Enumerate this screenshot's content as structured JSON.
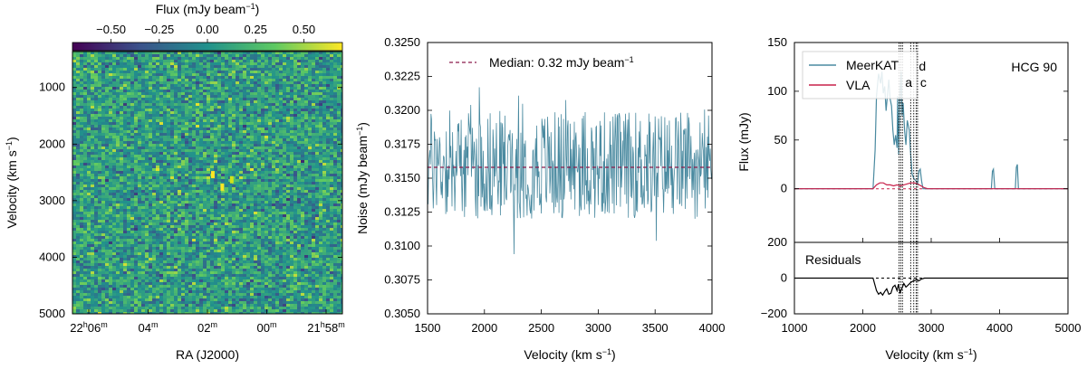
{
  "chart_data": [
    {
      "type": "heatmap",
      "xlabel": "RA (J2000)",
      "ylabel": "Velocity (km s",
      "ylabel_sup": "−1",
      "ylabel_end": ")",
      "x_ticks": [
        {
          "base": "22",
          "sup1": "h",
          "mid": "06",
          "sup2": "m"
        },
        {
          "base": "04",
          "sup1": "m",
          "mid": "",
          "sup2": ""
        },
        {
          "base": "02",
          "sup1": "m",
          "mid": "",
          "sup2": ""
        },
        {
          "base": "00",
          "sup1": "m",
          "mid": "",
          "sup2": ""
        },
        {
          "base": "21",
          "sup1": "h",
          "mid": "58",
          "sup2": "m"
        }
      ],
      "y_ticks": [
        "1000",
        "2000",
        "3000",
        "4000",
        "5000"
      ],
      "ylim": [
        365,
        5000
      ],
      "colorbar": {
        "label": "Flux (mJy beam",
        "label_sup": "−1",
        "label_end": ")",
        "range": [
          -0.7,
          0.7
        ],
        "ticks": [
          "−0.50",
          "−0.25",
          "0.00",
          "0.25",
          "0.50"
        ],
        "tick_values": [
          -0.5,
          -0.25,
          0.0,
          0.25,
          0.5
        ],
        "colormap": [
          "#440154",
          "#3b528b",
          "#21918c",
          "#5ec962",
          "#fde725"
        ]
      },
      "sources": [
        {
          "ra_frac": 0.52,
          "velocity": 2540,
          "color": "#fde725"
        },
        {
          "ra_frac": 0.555,
          "velocity": 2760,
          "color": "#fde725"
        },
        {
          "ra_frac": 0.59,
          "velocity": 2630,
          "color": "#d2e21b"
        }
      ]
    },
    {
      "type": "line",
      "xlabel": "Velocity (km s",
      "xlabel_sup": "−1",
      "xlabel_end": ")",
      "ylabel": "Noise (mJy beam",
      "ylabel_sup": "−1",
      "ylabel_end": ")",
      "xlim": [
        1500,
        4000
      ],
      "ylim": [
        0.305,
        0.325
      ],
      "x_ticks": [
        1500,
        2000,
        2500,
        3000,
        3500,
        4000
      ],
      "y_ticks": [
        "0.3050",
        "0.3075",
        "0.3100",
        "0.3125",
        "0.3150",
        "0.3175",
        "0.3200",
        "0.3225",
        "0.3250"
      ],
      "series_color": "#4a8aa0",
      "median": {
        "value": 0.3158,
        "label": "Median: 0.32 mJy beam",
        "label_sup": "−1",
        "color": "#8b1a4a"
      }
    },
    {
      "type": "line",
      "title": "HCG 90",
      "xlabel": "Velocity (km s",
      "xlabel_sup": "−1",
      "xlabel_end": ")",
      "ylabel": "Flux (mJy)",
      "xlim": [
        1000,
        5000
      ],
      "ylim": [
        -55,
        150
      ],
      "x_ticks": [
        1000,
        2000,
        3000,
        4000,
        5000
      ],
      "y_ticks": [
        0,
        50,
        100,
        150
      ],
      "series": [
        {
          "name": "MeerKAT",
          "color": "#4a8aa0",
          "points": [
            [
              1000,
              0
            ],
            [
              2150,
              0
            ],
            [
              2180,
              40
            ],
            [
              2200,
              95
            ],
            [
              2230,
              118
            ],
            [
              2260,
              108
            ],
            [
              2280,
              120
            ],
            [
              2300,
              98
            ],
            [
              2320,
              105
            ],
            [
              2340,
              80
            ],
            [
              2360,
              96
            ],
            [
              2380,
              112
            ],
            [
              2400,
              92
            ],
            [
              2420,
              85
            ],
            [
              2440,
              60
            ],
            [
              2460,
              45
            ],
            [
              2480,
              55
            ],
            [
              2500,
              42
            ],
            [
              2510,
              95
            ],
            [
              2525,
              35
            ],
            [
              2540,
              90
            ],
            [
              2560,
              120
            ],
            [
              2575,
              75
            ],
            [
              2590,
              88
            ],
            [
              2610,
              60
            ],
            [
              2630,
              45
            ],
            [
              2650,
              70
            ],
            [
              2680,
              60
            ],
            [
              2700,
              35
            ],
            [
              2720,
              15
            ],
            [
              2750,
              10
            ],
            [
              2780,
              8
            ],
            [
              2800,
              5
            ],
            [
              2820,
              18
            ],
            [
              2840,
              20
            ],
            [
              2860,
              8
            ],
            [
              2880,
              0
            ],
            [
              3880,
              0
            ],
            [
              3895,
              18
            ],
            [
              3910,
              20
            ],
            [
              3930,
              0
            ],
            [
              4230,
              0
            ],
            [
              4245,
              22
            ],
            [
              4260,
              25
            ],
            [
              4275,
              0
            ],
            [
              5000,
              0
            ]
          ]
        },
        {
          "name": "VLA",
          "color": "#c8204a",
          "points": [
            [
              1000,
              0
            ],
            [
              2150,
              0
            ],
            [
              2200,
              4
            ],
            [
              2250,
              6
            ],
            [
              2300,
              6
            ],
            [
              2350,
              4
            ],
            [
              2400,
              4
            ],
            [
              2450,
              3
            ],
            [
              2500,
              4
            ],
            [
              2550,
              3
            ],
            [
              2600,
              4
            ],
            [
              2650,
              5
            ],
            [
              2700,
              6
            ],
            [
              2750,
              6
            ],
            [
              2800,
              5
            ],
            [
              2850,
              3
            ],
            [
              2900,
              1
            ],
            [
              2950,
              0
            ],
            [
              5000,
              0
            ]
          ]
        }
      ],
      "legend": [
        {
          "name": "MeerKAT",
          "color": "#4a8aa0"
        },
        {
          "name": "VLA",
          "color": "#c8204a"
        }
      ],
      "galaxy_markers": [
        {
          "label": "d",
          "velocity": 2780,
          "row": 1
        },
        {
          "label": "a",
          "velocity": 2580,
          "row": 2
        },
        {
          "label": "c",
          "velocity": 2800,
          "row": 2
        }
      ],
      "vertical_lines": [
        2530,
        2555,
        2580,
        2700,
        2745,
        2780,
        2800
      ],
      "residuals": {
        "label": "Residuals",
        "ylim": [
          -200,
          200
        ],
        "y_ticks": [
          -200,
          0,
          200
        ],
        "points": [
          [
            1000,
            0
          ],
          [
            2150,
            0
          ],
          [
            2200,
            -70
          ],
          [
            2230,
            -90
          ],
          [
            2260,
            -80
          ],
          [
            2290,
            -95
          ],
          [
            2320,
            -75
          ],
          [
            2350,
            -60
          ],
          [
            2380,
            -90
          ],
          [
            2410,
            -85
          ],
          [
            2440,
            -50
          ],
          [
            2470,
            -40
          ],
          [
            2500,
            -70
          ],
          [
            2520,
            -35
          ],
          [
            2545,
            -80
          ],
          [
            2570,
            -60
          ],
          [
            2600,
            -30
          ],
          [
            2630,
            -50
          ],
          [
            2660,
            -40
          ],
          [
            2700,
            -25
          ],
          [
            2740,
            -15
          ],
          [
            2780,
            -10
          ],
          [
            2820,
            -15
          ],
          [
            2860,
            -5
          ],
          [
            2900,
            0
          ],
          [
            5000,
            0
          ]
        ]
      }
    }
  ]
}
